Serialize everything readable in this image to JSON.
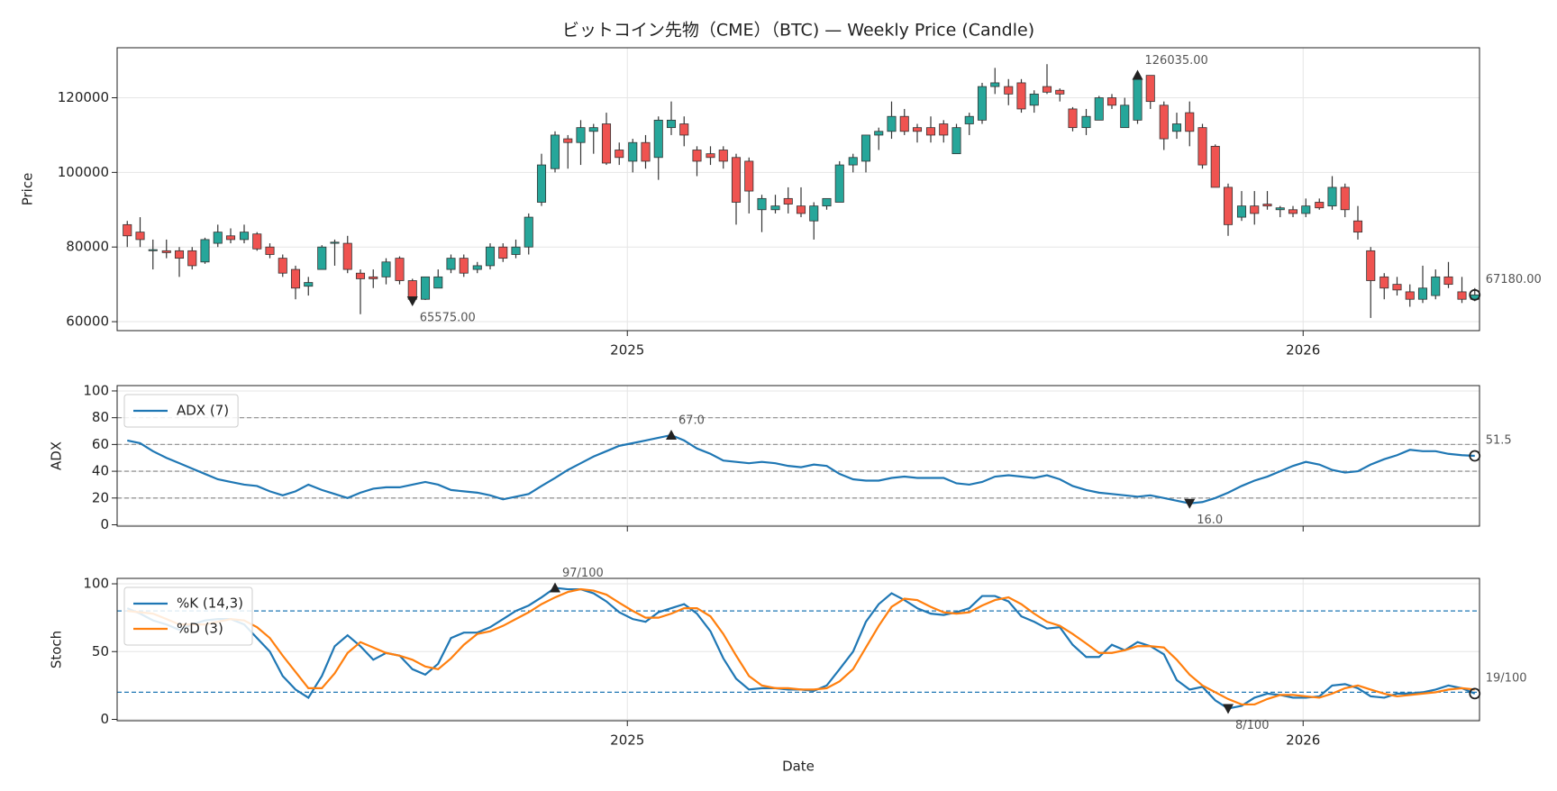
{
  "chart_data": [
    {
      "type": "candlestick",
      "title": "ビットコイン先物（CME）（BTC) — Weekly Price (Candle)",
      "ylabel": "Price",
      "x": [
        2024.26,
        2024.279,
        2024.298,
        2024.318,
        2024.337,
        2024.356,
        2024.375,
        2024.394,
        2024.413,
        2024.433,
        2024.452,
        2024.471,
        2024.49,
        2024.509,
        2024.528,
        2024.548,
        2024.567,
        2024.586,
        2024.605,
        2024.624,
        2024.643,
        2024.663,
        2024.682,
        2024.701,
        2024.72,
        2024.739,
        2024.758,
        2024.778,
        2024.797,
        2024.816,
        2024.835,
        2024.854,
        2024.873,
        2024.893,
        2024.912,
        2024.931,
        2024.95,
        2024.969,
        2024.988,
        2025.008,
        2025.027,
        2025.046,
        2025.065,
        2025.084,
        2025.103,
        2025.123,
        2025.142,
        2025.161,
        2025.18,
        2025.199,
        2025.219,
        2025.238,
        2025.257,
        2025.276,
        2025.295,
        2025.314,
        2025.334,
        2025.353,
        2025.372,
        2025.391,
        2025.41,
        2025.429,
        2025.449,
        2025.468,
        2025.487,
        2025.506,
        2025.525,
        2025.544,
        2025.564,
        2025.583,
        2025.602,
        2025.621,
        2025.64,
        2025.659,
        2025.679,
        2025.698,
        2025.717,
        2025.736,
        2025.755,
        2025.774,
        2025.794,
        2025.813,
        2025.832,
        2025.851,
        2025.87,
        2025.889,
        2025.909,
        2025.928,
        2025.947,
        2025.966,
        2025.985,
        2026.004,
        2026.024,
        2026.043,
        2026.062,
        2026.081,
        2026.1,
        2026.12,
        2026.139,
        2026.158,
        2026.177,
        2026.196,
        2026.215,
        2026.235,
        2026.254
      ],
      "open": [
        86000,
        84000,
        79000,
        79000,
        79000,
        79000,
        76000,
        81000,
        83000,
        82000,
        83500,
        80000,
        77000,
        74000,
        69500,
        74000,
        81000,
        81000,
        73000,
        72000,
        72000,
        77000,
        71000,
        66000,
        69000,
        74000,
        77000,
        74000,
        75000,
        80000,
        78000,
        80000,
        92000,
        101000,
        109000,
        108000,
        111000,
        113000,
        106000,
        103000,
        108000,
        104000,
        112000,
        113000,
        106000,
        105000,
        106000,
        104000,
        103000,
        90000,
        90000,
        93000,
        91000,
        87000,
        91000,
        92000,
        102000,
        103000,
        110000,
        111000,
        115000,
        112000,
        112000,
        113000,
        105000,
        113000,
        114000,
        123000,
        123000,
        124000,
        118000,
        123000,
        122000,
        117000,
        112000,
        114000,
        120000,
        112000,
        114000,
        126000,
        118000,
        111000,
        116000,
        112000,
        107000,
        96000,
        88000,
        91000,
        91500,
        90000,
        90000,
        89000,
        92000,
        91000,
        96000,
        87000,
        79000,
        72000,
        70000,
        68000,
        66000,
        67000,
        72000,
        68000,
        66000
      ],
      "high": [
        87000,
        88000,
        82000,
        82000,
        80000,
        80000,
        82500,
        86000,
        85000,
        86000,
        84000,
        81000,
        78000,
        75000,
        72000,
        80500,
        82000,
        83000,
        74000,
        74000,
        77000,
        77500,
        71500,
        72000,
        74000,
        78000,
        78000,
        76000,
        81000,
        81000,
        82000,
        89000,
        105000,
        111000,
        110000,
        114000,
        113000,
        116000,
        108000,
        109000,
        110000,
        115000,
        119000,
        115000,
        107000,
        107000,
        107000,
        105000,
        104000,
        94000,
        94000,
        96000,
        96000,
        92000,
        93000,
        103000,
        105000,
        110000,
        112000,
        119000,
        117000,
        113000,
        115000,
        114000,
        113000,
        116000,
        124000,
        128000,
        125000,
        125000,
        122000,
        129000,
        122500,
        117500,
        117000,
        120500,
        121000,
        120000,
        126035,
        125900,
        119000,
        116000,
        119000,
        113000,
        107500,
        97000,
        95000,
        95000,
        95000,
        91000,
        91000,
        93000,
        93000,
        99000,
        97000,
        91000,
        80000,
        73000,
        72000,
        70000,
        75000,
        74000,
        76000,
        72000,
        69000
      ],
      "low": [
        80000,
        80000,
        74000,
        77000,
        72000,
        74000,
        75500,
        80000,
        81000,
        81000,
        79000,
        77000,
        72000,
        66000,
        67000,
        74000,
        75000,
        73000,
        62000,
        69000,
        70000,
        70000,
        65575,
        65800,
        69000,
        73000,
        72000,
        73000,
        74000,
        76000,
        77000,
        78000,
        91000,
        100000,
        101000,
        102000,
        105000,
        102000,
        102000,
        100000,
        101000,
        98000,
        110000,
        107000,
        99000,
        102000,
        101000,
        86000,
        89000,
        84000,
        89000,
        89000,
        88000,
        82000,
        90000,
        92000,
        100000,
        100000,
        106000,
        109000,
        110000,
        108000,
        108000,
        108000,
        105000,
        110000,
        113000,
        121000,
        118000,
        116000,
        116000,
        121000,
        119000,
        111000,
        110000,
        114000,
        117000,
        112000,
        113000,
        117000,
        106000,
        109000,
        107000,
        101000,
        96000,
        83000,
        87000,
        86000,
        90000,
        88000,
        88000,
        88000,
        90000,
        90000,
        88000,
        82000,
        61000,
        66000,
        67000,
        64000,
        65000,
        66000,
        69000,
        65000,
        65500
      ],
      "close": [
        83000,
        82000,
        79300,
        78500,
        77000,
        75000,
        82000,
        84000,
        82000,
        84000,
        79500,
        78000,
        73000,
        69000,
        70500,
        80000,
        81300,
        74000,
        71500,
        71500,
        76000,
        71000,
        66000,
        72000,
        72000,
        77000,
        73000,
        75000,
        80000,
        77000,
        80000,
        88000,
        102000,
        110000,
        108000,
        112000,
        112000,
        102500,
        104000,
        108000,
        103000,
        114000,
        114000,
        110000,
        103000,
        104000,
        103000,
        92000,
        95000,
        93000,
        91000,
        91500,
        89000,
        91000,
        93000,
        102000,
        104000,
        110000,
        111000,
        115000,
        111000,
        111000,
        110000,
        110000,
        112000,
        115000,
        123000,
        124000,
        121000,
        117000,
        121000,
        121500,
        121000,
        112000,
        115000,
        120000,
        118000,
        118000,
        125000,
        119000,
        109000,
        113000,
        111000,
        102000,
        96000,
        86000,
        91000,
        89000,
        91000,
        90500,
        89000,
        91000,
        90500,
        96000,
        90000,
        84000,
        71000,
        69000,
        68500,
        66000,
        69000,
        72000,
        70000,
        66000,
        67180
      ],
      "up_color": "#26a69a",
      "down_color": "#ef5350",
      "edge_color": "#333333",
      "xlim": [
        2024.245,
        2026.261
      ],
      "xticks": [
        2025,
        2026
      ],
      "xticklabels": true,
      "ylim": [
        57600,
        133400
      ],
      "yticks": [
        60000,
        80000,
        100000,
        120000
      ],
      "grid": true,
      "annotations": [
        {
          "x": 2025.755,
          "value": 126035,
          "label": "126035.00",
          "marker": "up"
        },
        {
          "x": 2024.682,
          "value": 65575,
          "label": "65575.00",
          "marker": "down"
        },
        {
          "x": 2026.254,
          "value": 67180,
          "label": "67180.00",
          "marker": "circle"
        }
      ]
    },
    {
      "type": "line",
      "sharex": true,
      "ylabel": "ADX",
      "series": [
        {
          "name": "ADX (7)",
          "color": "#1f77b4",
          "values": [
            63,
            61,
            55,
            50,
            46,
            42,
            38,
            34,
            32,
            30,
            29,
            25,
            22,
            25,
            30,
            26,
            23,
            20,
            24,
            27,
            28,
            28,
            30,
            32,
            30,
            26,
            25,
            24,
            22,
            19,
            21,
            23,
            29,
            35,
            41,
            46,
            51,
            55,
            59,
            61,
            63,
            65,
            67,
            63,
            57,
            53,
            48,
            47,
            46,
            47,
            46,
            44,
            43,
            45,
            44,
            38,
            34,
            33,
            33,
            35,
            36,
            35,
            35,
            35,
            31,
            30,
            32,
            36,
            37,
            36,
            35,
            37,
            34,
            29,
            26,
            24,
            23,
            22,
            21,
            22,
            20,
            18,
            16,
            17,
            20,
            24,
            29,
            33,
            36,
            40,
            44,
            47,
            45,
            41,
            39,
            40,
            45,
            49,
            52,
            56,
            55,
            55,
            53,
            52,
            51.5
          ]
        }
      ],
      "xticklabels": false,
      "ylim": [
        -1,
        104
      ],
      "yticks": [
        0,
        20,
        40,
        60,
        80,
        100
      ],
      "grid": true,
      "ref_lines": [
        20,
        40,
        60,
        80
      ],
      "ref_color": "#999999",
      "legend": "upper left",
      "annotations": [
        {
          "x": 2025.065,
          "value": 67,
          "label": "67.0",
          "marker": "up"
        },
        {
          "x": 2025.832,
          "value": 16,
          "label": "16.0",
          "marker": "down"
        },
        {
          "x": 2026.254,
          "value": 51.5,
          "label": "51.5",
          "marker": "circle"
        }
      ]
    },
    {
      "type": "line",
      "sharex": true,
      "ylabel": "Stoch",
      "xlabel": "Date",
      "series": [
        {
          "name": "%K (14,3)",
          "color": "#1f77b4",
          "values": [
            82,
            78,
            73,
            70,
            66,
            70,
            73,
            74,
            74,
            70,
            60,
            50,
            32,
            22,
            16,
            32,
            54,
            62,
            54,
            44,
            49,
            47,
            37,
            33,
            41,
            60,
            64,
            64,
            68,
            74,
            80,
            84,
            90,
            97,
            96,
            96,
            93,
            87,
            79,
            74,
            72,
            79,
            82,
            85,
            78,
            65,
            45,
            30,
            22,
            23,
            23,
            22,
            22,
            21,
            25,
            37,
            50,
            72,
            85,
            93,
            88,
            82,
            78,
            77,
            79,
            82,
            91,
            91,
            87,
            76,
            72,
            67,
            68,
            55,
            46,
            46,
            55,
            51,
            57,
            54,
            48,
            29,
            22,
            24,
            14,
            8,
            10,
            16,
            19,
            18,
            16,
            16,
            17,
            25,
            26,
            23,
            17,
            16,
            19,
            19,
            20,
            22,
            25,
            23,
            19
          ]
        },
        {
          "name": "%D (3)",
          "color": "#ff7f0e",
          "values": [
            80,
            79,
            78,
            74,
            70,
            70,
            70,
            72,
            74,
            73,
            68,
            60,
            47,
            35,
            23,
            23,
            34,
            49,
            57,
            53,
            49,
            47,
            44,
            39,
            37,
            45,
            55,
            63,
            65,
            69,
            74,
            79,
            85,
            90,
            94,
            96,
            95,
            92,
            86,
            80,
            75,
            75,
            78,
            82,
            82,
            76,
            63,
            47,
            32,
            25,
            23,
            23,
            22,
            22,
            23,
            28,
            37,
            53,
            69,
            83,
            89,
            88,
            83,
            79,
            78,
            79,
            84,
            88,
            90,
            85,
            78,
            72,
            69,
            63,
            56,
            49,
            49,
            51,
            54,
            54,
            53,
            44,
            33,
            25,
            20,
            15,
            11,
            11,
            15,
            18,
            18,
            17,
            16,
            19,
            23,
            25,
            22,
            19,
            17,
            18,
            19,
            20,
            22,
            23,
            22
          ]
        }
      ],
      "xticklabels": true,
      "ylim": [
        -1,
        104
      ],
      "yticks": [
        0,
        50,
        100
      ],
      "grid": true,
      "ref_lines": [
        20,
        80
      ],
      "ref_color": "#1f77b4",
      "legend": "upper left",
      "annotations": [
        {
          "x": 2024.893,
          "value": 97,
          "label": "97/100",
          "marker": "up"
        },
        {
          "x": 2025.889,
          "value": 8,
          "label": "8/100",
          "marker": "down"
        },
        {
          "x": 2026.254,
          "value": 19,
          "label": "19/100",
          "marker": "circle"
        }
      ]
    }
  ]
}
